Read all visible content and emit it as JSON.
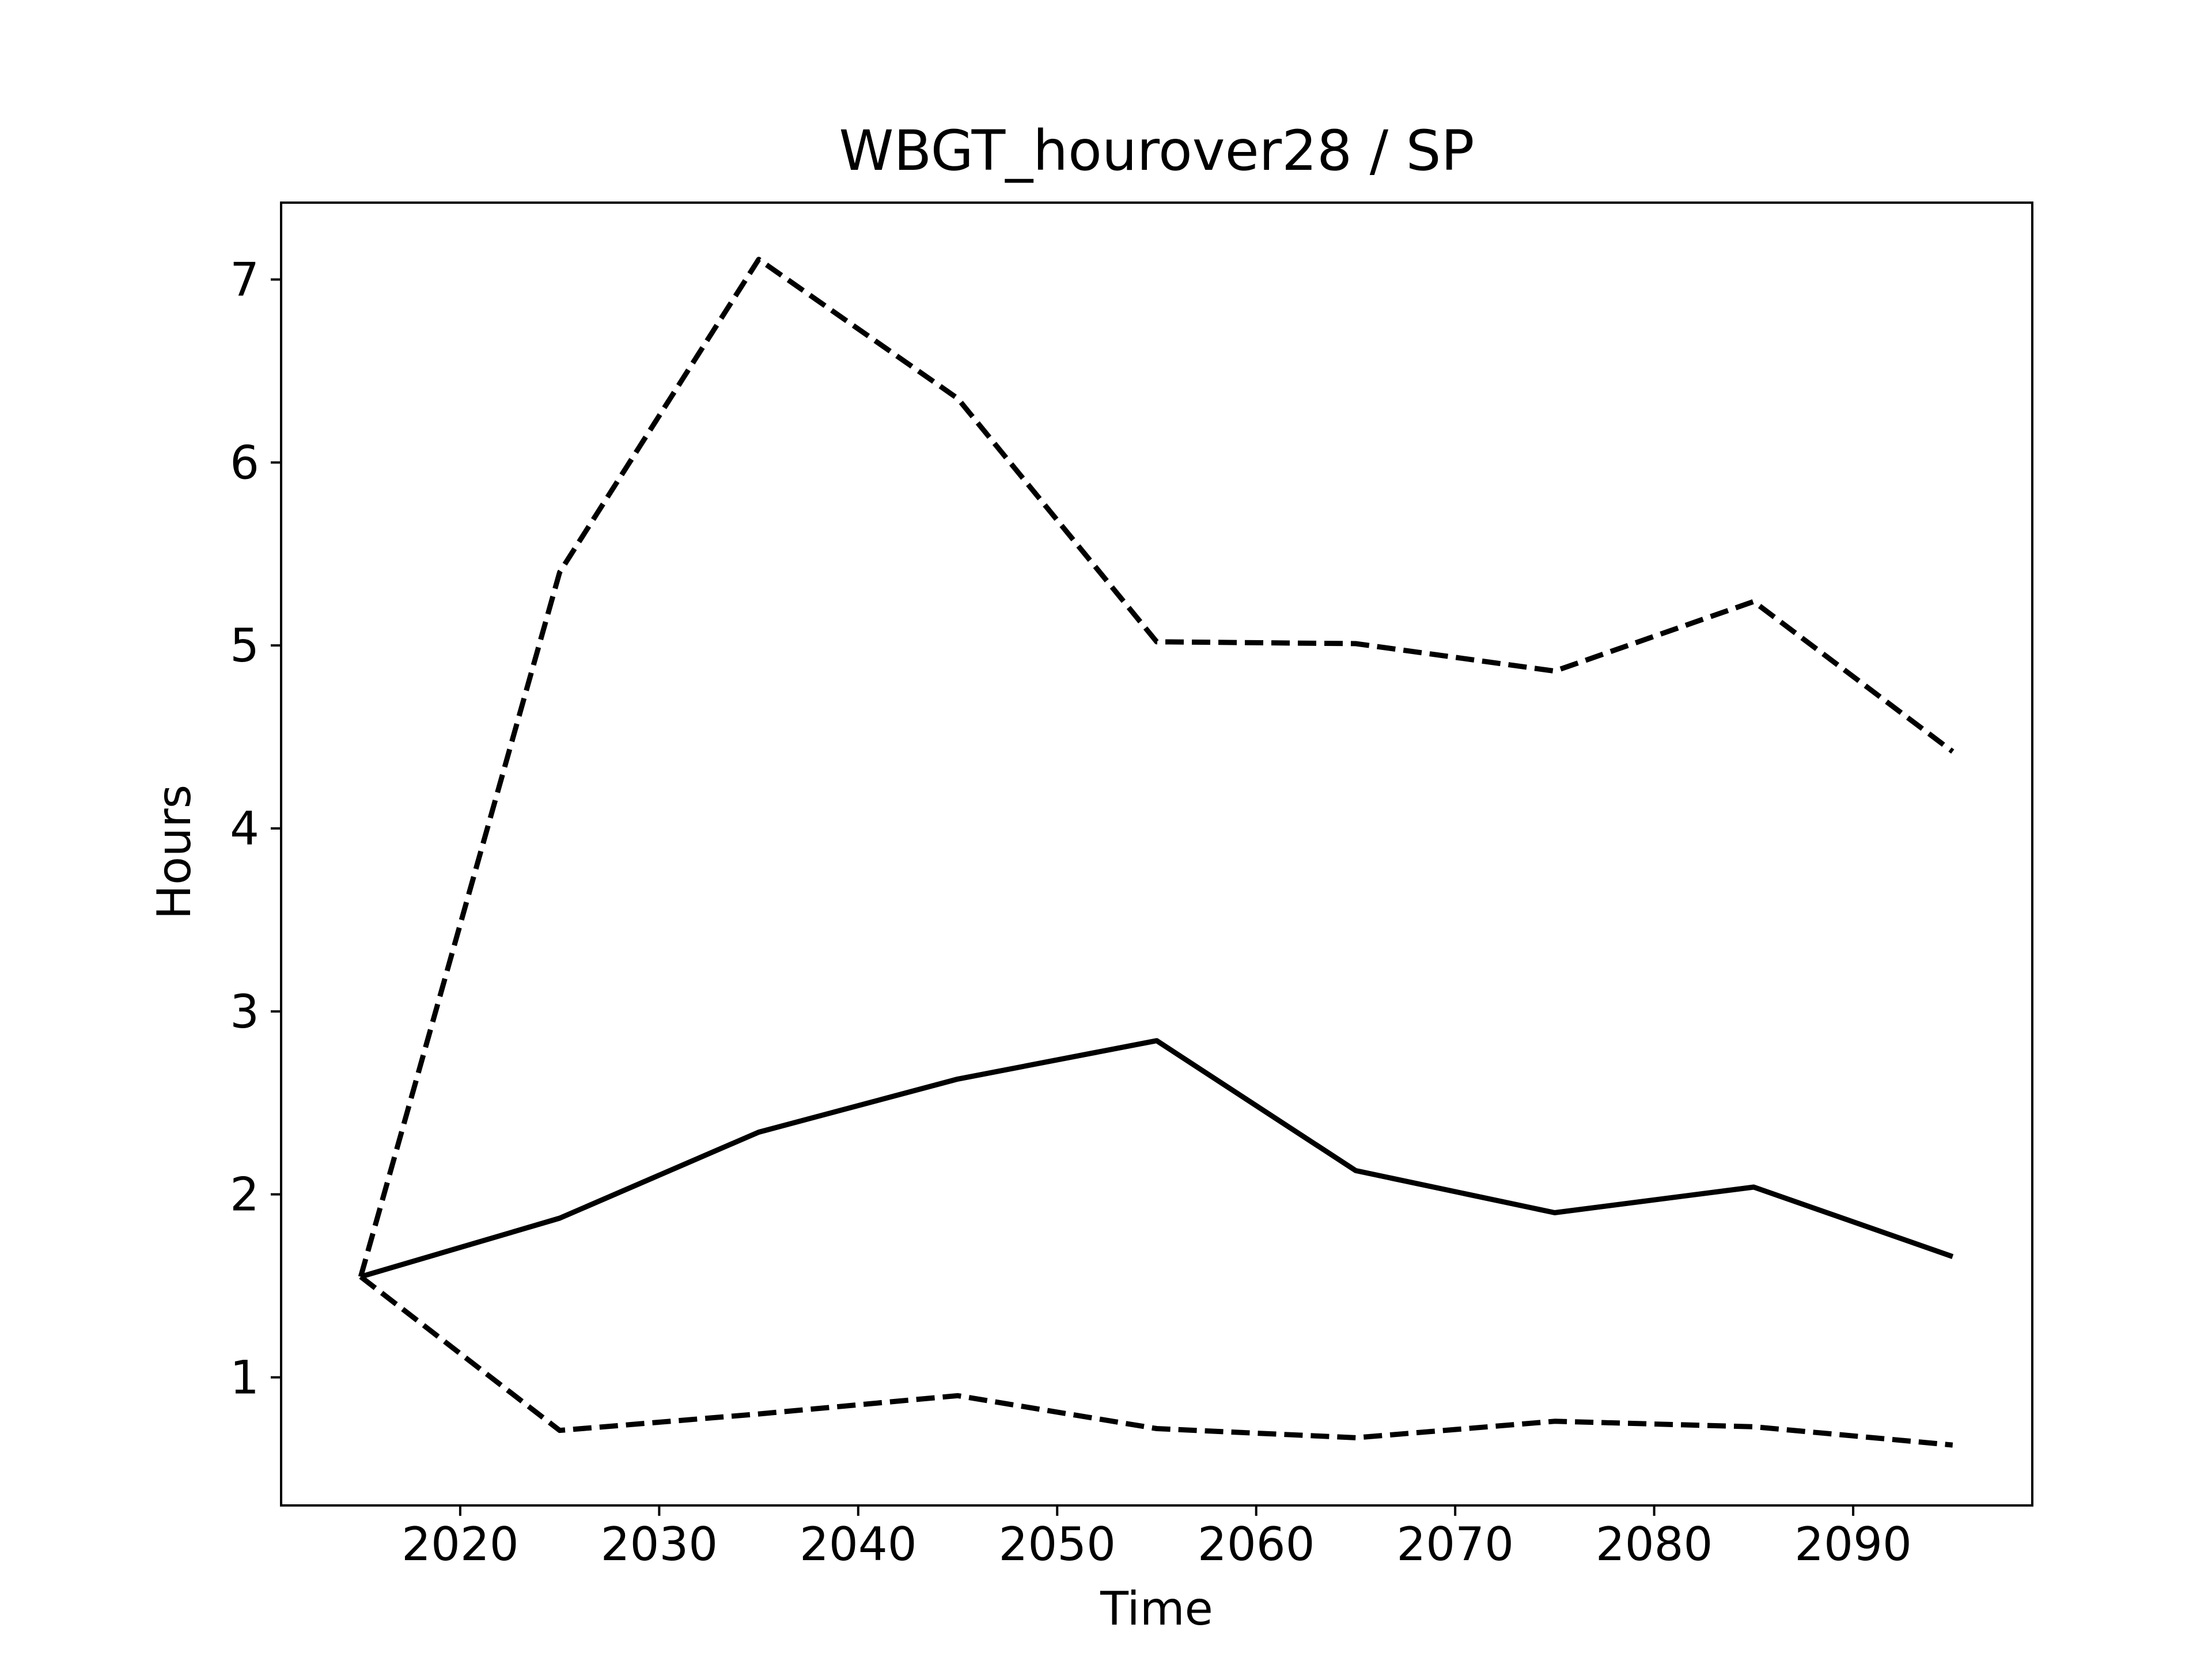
{
  "chart_data": {
    "type": "line",
    "title": "WBGT_hourover28 / SP",
    "xlabel": "Time",
    "ylabel": "Hours",
    "xlim": [
      2011,
      2099
    ],
    "ylim": [
      0.3,
      7.42
    ],
    "xticks": [
      2020,
      2030,
      2040,
      2050,
      2060,
      2070,
      2080,
      2090
    ],
    "yticks": [
      1,
      2,
      3,
      4,
      5,
      6,
      7
    ],
    "grid": false,
    "legend": "none",
    "x": [
      2015,
      2025,
      2035,
      2045,
      2055,
      2065,
      2075,
      2085,
      2095
    ],
    "series": [
      {
        "style": "solid",
        "color": "#000000",
        "values": [
          1.55,
          1.87,
          2.34,
          2.63,
          2.84,
          2.13,
          1.9,
          2.04,
          1.66
        ]
      },
      {
        "style": "dashed",
        "color": "#000000",
        "values": [
          1.55,
          5.4,
          7.11,
          6.35,
          5.02,
          5.01,
          4.86,
          5.24,
          4.42
        ]
      },
      {
        "style": "dashed",
        "color": "#000000",
        "values": [
          1.55,
          0.71,
          0.8,
          0.9,
          0.72,
          0.67,
          0.76,
          0.73,
          0.63
        ]
      }
    ]
  }
}
